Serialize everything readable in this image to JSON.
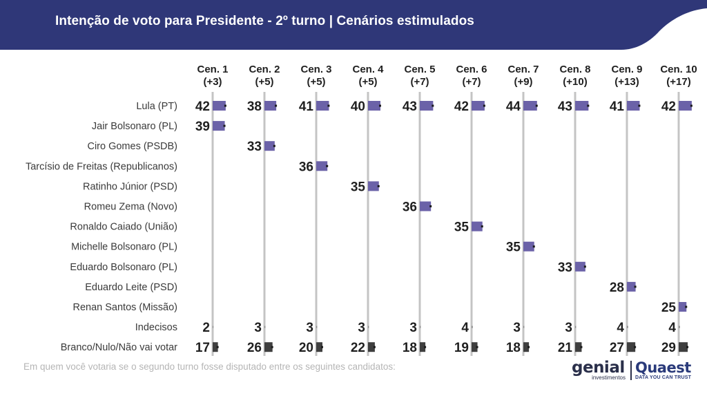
{
  "header": {
    "title": "Intenção de voto para Presidente - 2º turno | Cenários estimulados"
  },
  "footnote": "Em quem você votaria se o segundo turno fosse disputado entre os seguintes candidatos:",
  "logos": {
    "genial": {
      "word": "genial",
      "sub": "investimentos"
    },
    "quaest": {
      "word": "Quaest",
      "sub": "DATA YOU CAN TRUST"
    }
  },
  "colors": {
    "header_bg": "#2f3778",
    "bar_candidate": "#6b62a8",
    "bar_blank": "#3f3f3f",
    "column_line": "#c4c4c4"
  },
  "chart_data": {
    "type": "table",
    "title": "Intenção de voto para Presidente - 2º turno | Cenários estimulados",
    "columns": [
      {
        "label": "Cen. 1",
        "margin": "(+3)"
      },
      {
        "label": "Cen. 2",
        "margin": "(+5)"
      },
      {
        "label": "Cen. 3",
        "margin": "(+5)"
      },
      {
        "label": "Cen. 4",
        "margin": "(+5)"
      },
      {
        "label": "Cen. 5",
        "margin": "(+7)"
      },
      {
        "label": "Cen. 6",
        "margin": "(+7)"
      },
      {
        "label": "Cen. 7",
        "margin": "(+9)"
      },
      {
        "label": "Cen. 8",
        "margin": "(+10)"
      },
      {
        "label": "Cen. 9",
        "margin": "(+13)"
      },
      {
        "label": "Cen. 10",
        "margin": "(+17)"
      }
    ],
    "rows": [
      {
        "label": "Lula (PT)",
        "kind": "candidate",
        "values": [
          42,
          38,
          41,
          40,
          43,
          42,
          44,
          43,
          41,
          42
        ]
      },
      {
        "label": "Jair Bolsonaro (PL)",
        "kind": "candidate",
        "values": [
          39,
          null,
          null,
          null,
          null,
          null,
          null,
          null,
          null,
          null
        ]
      },
      {
        "label": "Ciro Gomes (PSDB)",
        "kind": "candidate",
        "values": [
          null,
          33,
          null,
          null,
          null,
          null,
          null,
          null,
          null,
          null
        ]
      },
      {
        "label": "Tarcísio de Freitas (Republicanos)",
        "kind": "candidate",
        "values": [
          null,
          null,
          36,
          null,
          null,
          null,
          null,
          null,
          null,
          null
        ]
      },
      {
        "label": "Ratinho Júnior (PSD)",
        "kind": "candidate",
        "values": [
          null,
          null,
          null,
          35,
          null,
          null,
          null,
          null,
          null,
          null
        ]
      },
      {
        "label": "Romeu Zema (Novo)",
        "kind": "candidate",
        "values": [
          null,
          null,
          null,
          null,
          36,
          null,
          null,
          null,
          null,
          null
        ]
      },
      {
        "label": "Ronaldo Caiado (União)",
        "kind": "candidate",
        "values": [
          null,
          null,
          null,
          null,
          null,
          35,
          null,
          null,
          null,
          null
        ]
      },
      {
        "label": "Michelle Bolsonaro (PL)",
        "kind": "candidate",
        "values": [
          null,
          null,
          null,
          null,
          null,
          null,
          35,
          null,
          null,
          null
        ]
      },
      {
        "label": "Eduardo Bolsonaro (PL)",
        "kind": "candidate",
        "values": [
          null,
          null,
          null,
          null,
          null,
          null,
          null,
          33,
          null,
          null
        ]
      },
      {
        "label": "Eduardo Leite (PSD)",
        "kind": "candidate",
        "values": [
          null,
          null,
          null,
          null,
          null,
          null,
          null,
          null,
          28,
          null
        ]
      },
      {
        "label": "Renan Santos (Missão)",
        "kind": "candidate",
        "values": [
          null,
          null,
          null,
          null,
          null,
          null,
          null,
          null,
          null,
          25
        ]
      },
      {
        "label": "Indecisos",
        "kind": "undecided",
        "values": [
          2,
          3,
          3,
          3,
          3,
          4,
          3,
          3,
          4,
          4
        ]
      },
      {
        "label": "Branco/Nulo/Não vai votar",
        "kind": "blank",
        "values": [
          17,
          26,
          20,
          22,
          18,
          19,
          18,
          21,
          27,
          29
        ]
      }
    ]
  }
}
